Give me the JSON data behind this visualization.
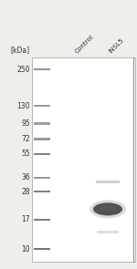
{
  "fig_width": 1.5,
  "fig_height": 2.95,
  "dpi": 100,
  "bg_color": "#f0eeeb",
  "gel_bg": "#ffffff",
  "border_color": "#888888",
  "ladder_kda": [
    250,
    130,
    95,
    72,
    55,
    36,
    28,
    17,
    10
  ],
  "kda_label": "[kDa]",
  "col_labels": [
    "Control",
    "INSL5"
  ],
  "main_band_color": "#454545",
  "faint_band_color": "#c8c0b4",
  "lower_faint_color": "#d0c8bc",
  "main_band_kda": 20.5,
  "faint_band_kda": 33.5,
  "lower_faint_kda": 13.5,
  "label_fontsize": 5.5,
  "col_label_fontsize": 5.2,
  "kda_label_fontsize": 5.5
}
